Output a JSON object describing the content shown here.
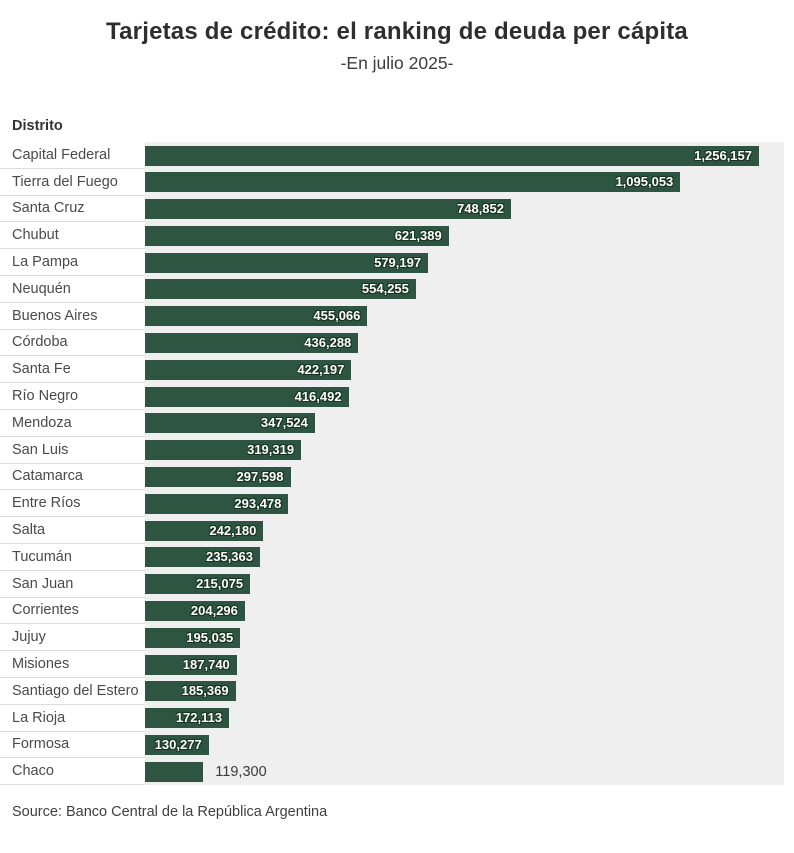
{
  "page": {
    "title": "Tarjetas de crédito: el ranking de deuda per cápita",
    "subtitle": "-En julio 2025-",
    "axis_header": "Distrito",
    "source": "Source: Banco Central de la República Argentina"
  },
  "colors": {
    "bar": "#2d5541",
    "plot_background": "#efefef",
    "value_label_inside": "#ffffff",
    "value_label_outside": "#3a3a3a",
    "category_label": "#4a4a4a",
    "row_divider": "#dcdcdc",
    "title_text": "#2e2e2e"
  },
  "chart_data": {
    "type": "bar",
    "orientation": "horizontal",
    "title": "Tarjetas de crédito: el ranking de deuda per cápita",
    "subtitle": "-En julio 2025-",
    "xlabel": "",
    "ylabel": "Distrito",
    "xlim": [
      0,
      1300000
    ],
    "grid": "off",
    "legend": "none",
    "categories": [
      "Capital Federal",
      "Tierra del Fuego",
      "Santa Cruz",
      "Chubut",
      "La Pampa",
      "Neuquén",
      "Buenos Aires",
      "Córdoba",
      "Santa Fe",
      "Río Negro",
      "Mendoza",
      "San Luis",
      "Catamarca",
      "Entre Ríos",
      "Salta",
      "Tucumán",
      "San Juan",
      "Corrientes",
      "Jujuy",
      "Misiones",
      "Santiago del Estero",
      "La Rioja",
      "Formosa",
      "Chaco"
    ],
    "values": [
      1256157,
      1095053,
      748852,
      621389,
      579197,
      554255,
      455066,
      436288,
      422197,
      416492,
      347524,
      319319,
      297598,
      293478,
      242180,
      235363,
      215075,
      204296,
      195035,
      187740,
      185369,
      172113,
      130277,
      119300
    ],
    "value_labels": [
      "1,256,157",
      "1,095,053",
      "748,852",
      "621,389",
      "579,197",
      "554,255",
      "455,066",
      "436,288",
      "422,197",
      "416,492",
      "347,524",
      "319,319",
      "297,598",
      "293,478",
      "242,180",
      "235,363",
      "215,075",
      "204,296",
      "195,035",
      "187,740",
      "185,369",
      "172,113",
      "130,277",
      "119,300"
    ],
    "source": "Source: Banco Central de la República Argentina"
  }
}
